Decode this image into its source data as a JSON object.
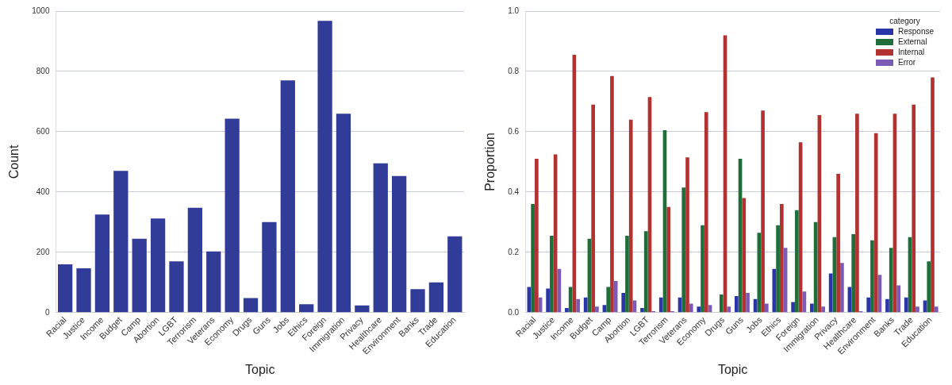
{
  "chart_data": [
    {
      "type": "bar",
      "xlabel": "Topic",
      "ylabel": "Count",
      "categories": [
        "Racial",
        "Justice",
        "Income",
        "Budget",
        "Camp",
        "Abortion",
        "LGBT",
        "Terrorism",
        "Veterans",
        "Economy",
        "Drugs",
        "Guns",
        "Jobs",
        "Ethics",
        "Foreign",
        "Immigration",
        "Privacy",
        "Healthcare",
        "Environment",
        "Banks",
        "Trade",
        "Education"
      ],
      "values": [
        160,
        147,
        325,
        470,
        245,
        312,
        170,
        348,
        203,
        643,
        48,
        300,
        770,
        28,
        968,
        660,
        24,
        495,
        453,
        78,
        100,
        253
      ],
      "color": "#313c98",
      "ylim": [
        0,
        1000
      ],
      "yticks": [
        0,
        200,
        400,
        600,
        800,
        1000
      ],
      "grid": "y",
      "legend": false
    },
    {
      "type": "bar",
      "xlabel": "Topic",
      "ylabel": "Proportion",
      "legend_title": "category",
      "legend": "top right",
      "grid": "y",
      "categories": [
        "Racial",
        "Justice",
        "Income",
        "Budget",
        "Camp",
        "Abortion",
        "LGBT",
        "Terrorism",
        "Veterans",
        "Economy",
        "Drugs",
        "Guns",
        "Jobs",
        "Ethics",
        "Foreign",
        "Immigration",
        "Privacy",
        "Healthcare",
        "Environment",
        "Banks",
        "Trade",
        "Education"
      ],
      "series": [
        {
          "name": "Response",
          "color": "#2a35a8",
          "values": [
            0.085,
            0.08,
            0.015,
            0.05,
            0.025,
            0.065,
            0.015,
            0.05,
            0.05,
            0.02,
            0,
            0.055,
            0.045,
            0.145,
            0.035,
            0.03,
            0.13,
            0.085,
            0.05,
            0.045,
            0.05,
            0.04
          ]
        },
        {
          "name": "External",
          "color": "#1f6e3a",
          "values": [
            0.36,
            0.255,
            0.085,
            0.245,
            0.085,
            0.255,
            0.27,
            0.605,
            0.415,
            0.29,
            0.06,
            0.51,
            0.265,
            0.29,
            0.34,
            0.3,
            0.25,
            0.26,
            0.24,
            0.215,
            0.25,
            0.17
          ]
        },
        {
          "name": "Internal",
          "color": "#b23232",
          "values": [
            0.51,
            0.525,
            0.855,
            0.69,
            0.785,
            0.64,
            0.715,
            0.35,
            0.515,
            0.665,
            0.92,
            0.38,
            0.67,
            0.36,
            0.565,
            0.655,
            0.46,
            0.66,
            0.595,
            0.66,
            0.69,
            0.78
          ]
        },
        {
          "name": "Error",
          "color": "#7a5ab5",
          "values": [
            0.05,
            0.145,
            0.045,
            0.02,
            0.105,
            0.04,
            0.005,
            0.005,
            0.03,
            0.025,
            0.02,
            0.065,
            0.03,
            0.215,
            0.07,
            0.02,
            0.165,
            0.005,
            0.125,
            0.09,
            0.02,
            0.02
          ]
        }
      ],
      "ylim": [
        0,
        1
      ],
      "yticks": [
        {
          "value": 0,
          "label": "0.0"
        },
        {
          "value": 0.2,
          "label": "0.2"
        },
        {
          "value": 0.4,
          "label": "0.4"
        },
        {
          "value": 0.6,
          "label": "0.6"
        },
        {
          "value": 0.8,
          "label": "0.8"
        },
        {
          "value": 1,
          "label": "1.0"
        }
      ]
    }
  ]
}
